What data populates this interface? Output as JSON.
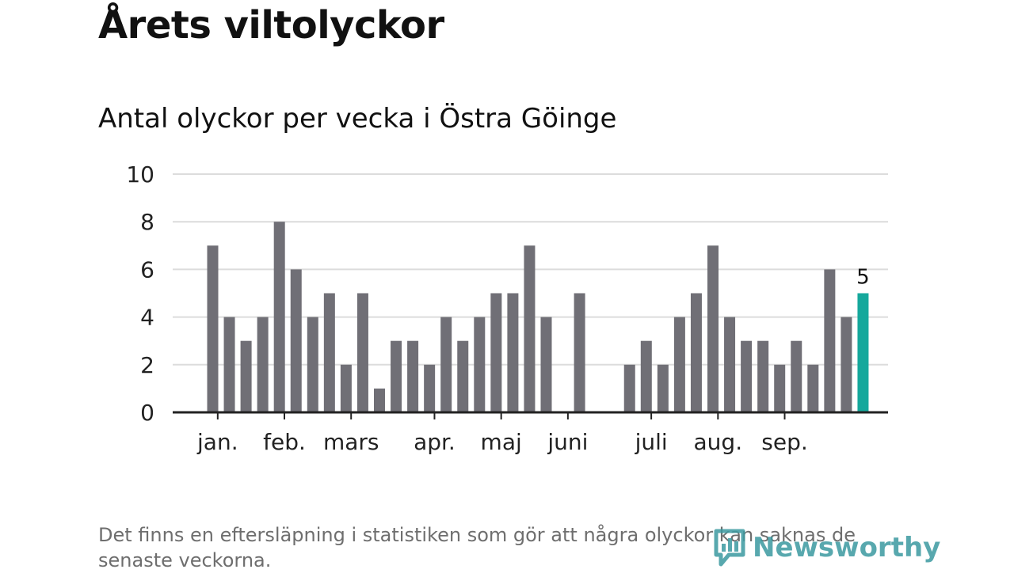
{
  "header": {
    "title": "Årets viltolyckor",
    "subtitle": "Antal olyckor per vecka i Östra Göinge"
  },
  "footnote": "Det finns en eftersläpning i statistiken som gör att några olyckor kan saknas de senaste veckorna.",
  "brand": {
    "name": "Newsworthy"
  },
  "colors": {
    "bar": "#706f76",
    "highlight": "#15a89c",
    "grid": "#dcdcdc",
    "axis": "#222222",
    "brand": "#3b9aa0"
  },
  "chart_data": {
    "type": "bar",
    "ylim": [
      0,
      10
    ],
    "yticks": [
      0,
      2,
      4,
      6,
      8,
      10
    ],
    "grid": true,
    "x": [
      1,
      2,
      3,
      4,
      5,
      6,
      7,
      8,
      9,
      10,
      11,
      12,
      13,
      14,
      15,
      16,
      17,
      18,
      19,
      20,
      21,
      22,
      23,
      24,
      25,
      26,
      27,
      28,
      29,
      30,
      31,
      32,
      33,
      34,
      35,
      36,
      37,
      38,
      39,
      40
    ],
    "values": [
      7,
      4,
      3,
      4,
      8,
      6,
      4,
      5,
      2,
      5,
      1,
      3,
      3,
      2,
      4,
      3,
      4,
      5,
      5,
      7,
      4,
      0,
      5,
      null,
      null,
      2,
      3,
      2,
      4,
      5,
      7,
      4,
      3,
      3,
      2,
      3,
      2,
      6,
      4,
      5
    ],
    "month_ticks": [
      {
        "label": "jan.",
        "x": 1.3
      },
      {
        "label": "feb.",
        "x": 5.3
      },
      {
        "label": "mars",
        "x": 9.3
      },
      {
        "label": "apr.",
        "x": 14.3
      },
      {
        "label": "maj",
        "x": 18.3
      },
      {
        "label": "juni",
        "x": 22.3
      },
      {
        "label": "juli",
        "x": 27.3
      },
      {
        "label": "aug.",
        "x": 31.3
      },
      {
        "label": "sep.",
        "x": 35.3
      }
    ],
    "highlight_index": 39,
    "highlight_label": "5"
  }
}
